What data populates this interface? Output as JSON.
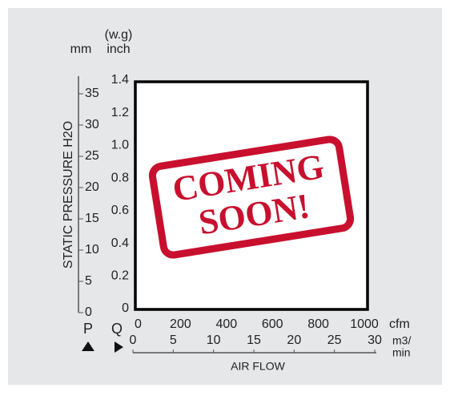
{
  "chart_data": {
    "type": "line",
    "y_label": "STATIC PRESSURE H2O",
    "x_label": "AIR FLOW",
    "y_unit": "mm",
    "y2_unit_top": "(w.g)",
    "y2_unit": "inch",
    "x_unit": "cfm",
    "x2_unit_lines": [
      "m3/",
      "min"
    ],
    "p_label": "P",
    "q_label": "Q",
    "ylim": [
      0,
      35
    ],
    "yticks": [
      0,
      5,
      10,
      15,
      20,
      25,
      30,
      35
    ],
    "y2lim": [
      0,
      1.4
    ],
    "y2ticks": [
      0,
      0.2,
      0.4,
      0.6,
      0.8,
      {
        "value": 1.0,
        "label": "1.0"
      },
      1.2,
      1.4
    ],
    "xlim": [
      0,
      1000
    ],
    "xticks": [
      0,
      200,
      400,
      600,
      800,
      1000
    ],
    "x2lim": [
      0,
      30
    ],
    "x2ticks": [
      0,
      5,
      10,
      15,
      20,
      25,
      30
    ],
    "stamp": [
      "COMING",
      "SOON!"
    ]
  }
}
